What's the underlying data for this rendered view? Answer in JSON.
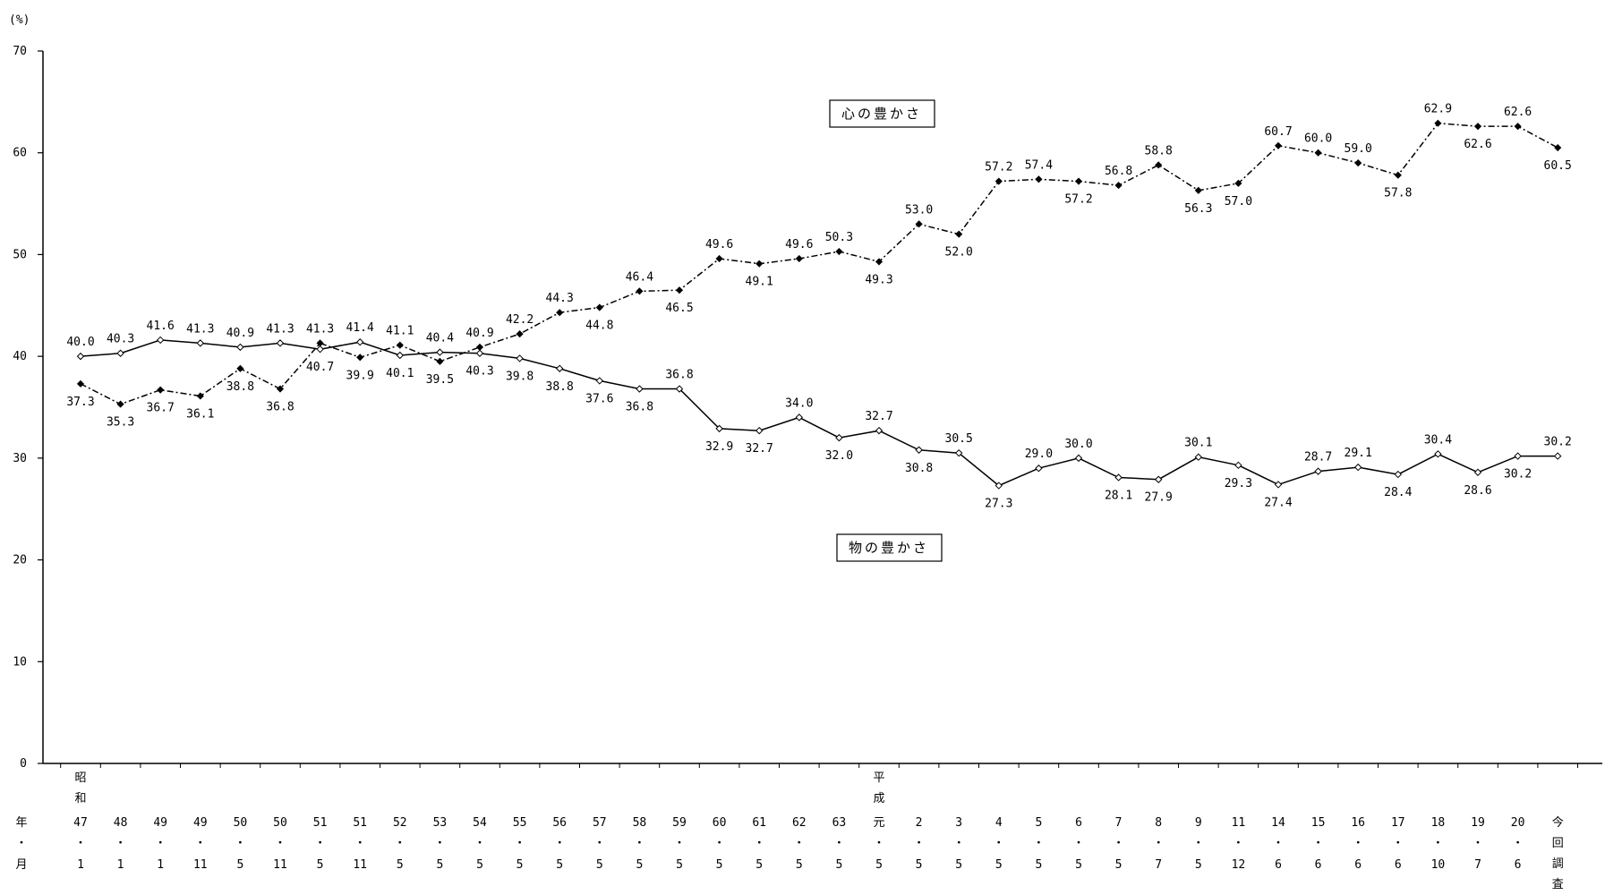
{
  "chart_data": {
    "type": "line",
    "y_unit_label": "(%)",
    "ylim": [
      0,
      70
    ],
    "yticks": [
      0,
      10,
      20,
      30,
      40,
      50,
      60,
      70
    ],
    "grid": false,
    "row_labels": {
      "year": "年",
      "month": "月"
    },
    "categories": [
      {
        "era": "昭和",
        "year": "47",
        "month": "1"
      },
      {
        "year": "48",
        "month": "1"
      },
      {
        "year": "49",
        "month": "1"
      },
      {
        "year": "49",
        "month": "11"
      },
      {
        "year": "50",
        "month": "5"
      },
      {
        "year": "50",
        "month": "11"
      },
      {
        "year": "51",
        "month": "5"
      },
      {
        "year": "51",
        "month": "11"
      },
      {
        "year": "52",
        "month": "5"
      },
      {
        "year": "53",
        "month": "5"
      },
      {
        "year": "54",
        "month": "5"
      },
      {
        "year": "55",
        "month": "5"
      },
      {
        "year": "56",
        "month": "5"
      },
      {
        "year": "57",
        "month": "5"
      },
      {
        "year": "58",
        "month": "5"
      },
      {
        "year": "59",
        "month": "5"
      },
      {
        "year": "60",
        "month": "5"
      },
      {
        "year": "61",
        "month": "5"
      },
      {
        "year": "62",
        "month": "5"
      },
      {
        "year": "63",
        "month": "5"
      },
      {
        "era": "平成",
        "year": "元",
        "month": "5"
      },
      {
        "year": "2",
        "month": "5"
      },
      {
        "year": "3",
        "month": "5"
      },
      {
        "year": "4",
        "month": "5"
      },
      {
        "year": "5",
        "month": "5"
      },
      {
        "year": "6",
        "month": "5"
      },
      {
        "year": "7",
        "month": "5"
      },
      {
        "year": "8",
        "month": "7"
      },
      {
        "year": "9",
        "month": "5"
      },
      {
        "year": "11",
        "month": "12"
      },
      {
        "year": "14",
        "month": "6"
      },
      {
        "year": "15",
        "month": "6"
      },
      {
        "year": "16",
        "month": "6"
      },
      {
        "year": "17",
        "month": "6"
      },
      {
        "year": "18",
        "month": "10"
      },
      {
        "year": "19",
        "month": "7"
      },
      {
        "year": "20",
        "month": "6"
      },
      {
        "year": "今回調査",
        "month": ""
      }
    ],
    "series": [
      {
        "name": "心の豊かさ",
        "style": "dashed",
        "marker": "filled-diamond",
        "color": "#000000",
        "values": [
          37.3,
          35.3,
          36.7,
          36.1,
          38.8,
          36.8,
          41.3,
          39.9,
          41.1,
          39.5,
          40.9,
          42.2,
          44.3,
          44.8,
          46.4,
          46.5,
          49.6,
          49.1,
          49.6,
          50.3,
          49.3,
          53.0,
          52.0,
          57.2,
          57.4,
          57.2,
          56.8,
          58.8,
          56.3,
          57.0,
          60.7,
          60.0,
          59.0,
          57.8,
          62.9,
          62.6,
          62.6,
          60.5
        ]
      },
      {
        "name": "物の豊かさ",
        "style": "solid",
        "marker": "open-diamond",
        "color": "#000000",
        "values": [
          40.0,
          40.3,
          41.6,
          41.3,
          40.9,
          41.3,
          40.7,
          41.4,
          40.1,
          40.4,
          40.3,
          39.8,
          38.8,
          37.6,
          36.8,
          36.8,
          32.9,
          32.7,
          34.0,
          32.0,
          32.7,
          30.8,
          30.5,
          27.3,
          29.0,
          30.0,
          28.1,
          27.9,
          30.1,
          29.3,
          27.4,
          28.7,
          29.1,
          28.4,
          30.4,
          28.6,
          30.2,
          30.2
        ]
      }
    ]
  }
}
